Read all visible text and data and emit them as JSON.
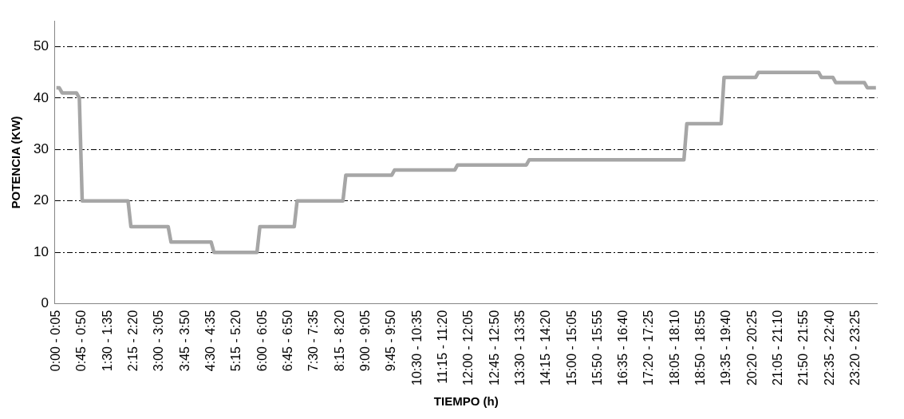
{
  "chart_data": {
    "type": "step",
    "xlabel": "TIEMPO (h)",
    "ylabel": "POTENCIA (KW)",
    "categories": [
      "0:00 - 0:05",
      null,
      null,
      null,
      null,
      null,
      null,
      null,
      null,
      "0:45 - 0:50",
      null,
      null,
      null,
      null,
      null,
      null,
      null,
      null,
      "1:30 - 1:35",
      null,
      null,
      null,
      null,
      null,
      null,
      null,
      null,
      "2:15 - 2:20",
      null,
      null,
      null,
      null,
      null,
      null,
      null,
      null,
      "3:00 - 3:05",
      null,
      null,
      null,
      null,
      null,
      null,
      null,
      null,
      "3:45 - 3:50",
      null,
      null,
      null,
      null,
      null,
      null,
      null,
      null,
      "4:30 - 4:35",
      null,
      null,
      null,
      null,
      null,
      null,
      null,
      null,
      "5:15 - 5:20",
      null,
      null,
      null,
      null,
      null,
      null,
      null,
      null,
      "6:00 - 6:05",
      null,
      null,
      null,
      null,
      null,
      null,
      null,
      null,
      "6:45 - 6:50",
      null,
      null,
      null,
      null,
      null,
      null,
      null,
      null,
      "7:30 - 7:35",
      null,
      null,
      null,
      null,
      null,
      null,
      null,
      null,
      "8:15 - 8:20",
      null,
      null,
      null,
      null,
      null,
      null,
      null,
      null,
      "9:00 - 9:05",
      null,
      null,
      null,
      null,
      null,
      null,
      null,
      null,
      "9:45 - 9:50",
      null,
      null,
      null,
      null,
      null,
      null,
      null,
      null,
      "10:30 - 10:35",
      null,
      null,
      null,
      null,
      null,
      null,
      null,
      null,
      "11:15 - 11:20",
      null,
      null,
      null,
      null,
      null,
      null,
      null,
      null,
      "12:00 - 12:05",
      null,
      null,
      null,
      null,
      null,
      null,
      null,
      null,
      "12:45 - 12:50",
      null,
      null,
      null,
      null,
      null,
      null,
      null,
      null,
      "13:30 - 13:35",
      null,
      null,
      null,
      null,
      null,
      null,
      null,
      null,
      "14:15 - 14:20",
      null,
      null,
      null,
      null,
      null,
      null,
      null,
      null,
      "15:00 - 15:05",
      null,
      null,
      null,
      null,
      null,
      null,
      null,
      null,
      "15:50 - 15:55",
      null,
      null,
      null,
      null,
      null,
      null,
      null,
      null,
      "16:35 - 16:40",
      null,
      null,
      null,
      null,
      null,
      null,
      null,
      null,
      "17:20 - 17:25",
      null,
      null,
      null,
      null,
      null,
      null,
      null,
      null,
      "18:05 - 18:10",
      null,
      null,
      null,
      null,
      null,
      null,
      null,
      null,
      "18:50 - 18:55",
      null,
      null,
      null,
      null,
      null,
      null,
      null,
      null,
      "19:35 - 19:40",
      null,
      null,
      null,
      null,
      null,
      null,
      null,
      null,
      "20:20 - 20:25",
      null,
      null,
      null,
      null,
      null,
      null,
      null,
      null,
      "21:05 - 21:10",
      null,
      null,
      null,
      null,
      null,
      null,
      null,
      null,
      "21:50 - 21:55",
      null,
      null,
      null,
      null,
      null,
      null,
      null,
      null,
      "22:35 - 22:40",
      null,
      null,
      null,
      null,
      null,
      null,
      null,
      null,
      "23:20 - 23:25",
      null,
      null,
      null,
      null,
      null,
      null,
      null
    ],
    "series": [
      {
        "color": "#a6a6a6",
        "values": [
          42,
          42,
          41,
          41,
          41,
          41,
          41,
          41,
          40,
          20,
          20,
          20,
          20,
          20,
          20,
          20,
          20,
          20,
          20,
          20,
          20,
          20,
          20,
          20,
          20,
          20,
          15,
          15,
          15,
          15,
          15,
          15,
          15,
          15,
          15,
          15,
          15,
          15,
          15,
          15,
          12,
          12,
          12,
          12,
          12,
          12,
          12,
          12,
          12,
          12,
          12,
          12,
          12,
          12,
          12,
          10,
          10,
          10,
          10,
          10,
          10,
          10,
          10,
          10,
          10,
          10,
          10,
          10,
          10,
          10,
          10,
          15,
          15,
          15,
          15,
          15,
          15,
          15,
          15,
          15,
          15,
          15,
          15,
          15,
          20,
          20,
          20,
          20,
          20,
          20,
          20,
          20,
          20,
          20,
          20,
          20,
          20,
          20,
          20,
          20,
          20,
          25,
          25,
          25,
          25,
          25,
          25,
          25,
          25,
          25,
          25,
          25,
          25,
          25,
          25,
          25,
          25,
          25,
          26,
          26,
          26,
          26,
          26,
          26,
          26,
          26,
          26,
          26,
          26,
          26,
          26,
          26,
          26,
          26,
          26,
          26,
          26,
          26,
          26,
          26,
          27,
          27,
          27,
          27,
          27,
          27,
          27,
          27,
          27,
          27,
          27,
          27,
          27,
          27,
          27,
          27,
          27,
          27,
          27,
          27,
          27,
          27,
          27,
          27,
          27,
          28,
          28,
          28,
          28,
          28,
          28,
          28,
          28,
          28,
          28,
          28,
          28,
          28,
          28,
          28,
          28,
          28,
          28,
          28,
          28,
          28,
          28,
          28,
          28,
          28,
          28,
          28,
          28,
          28,
          28,
          28,
          28,
          28,
          28,
          28,
          28,
          28,
          28,
          28,
          28,
          28,
          28,
          28,
          28,
          28,
          28,
          28,
          28,
          28,
          28,
          28,
          28,
          28,
          28,
          28,
          35,
          35,
          35,
          35,
          35,
          35,
          35,
          35,
          35,
          35,
          35,
          35,
          35,
          44,
          44,
          44,
          44,
          44,
          44,
          44,
          44,
          44,
          44,
          44,
          44,
          45,
          45,
          45,
          45,
          45,
          45,
          45,
          45,
          45,
          45,
          45,
          45,
          45,
          45,
          45,
          45,
          45,
          45,
          45,
          45,
          45,
          45,
          44,
          44,
          44,
          44,
          44,
          43,
          43,
          43,
          43,
          43,
          43,
          43,
          43,
          43,
          43,
          43,
          42,
          42,
          42,
          42
        ]
      }
    ],
    "ylim": [
      0,
      55
    ],
    "yticks": [
      0,
      10,
      20,
      30,
      40,
      50
    ],
    "grid": "y",
    "legend": false,
    "marker": "none",
    "line_style": "solid"
  }
}
